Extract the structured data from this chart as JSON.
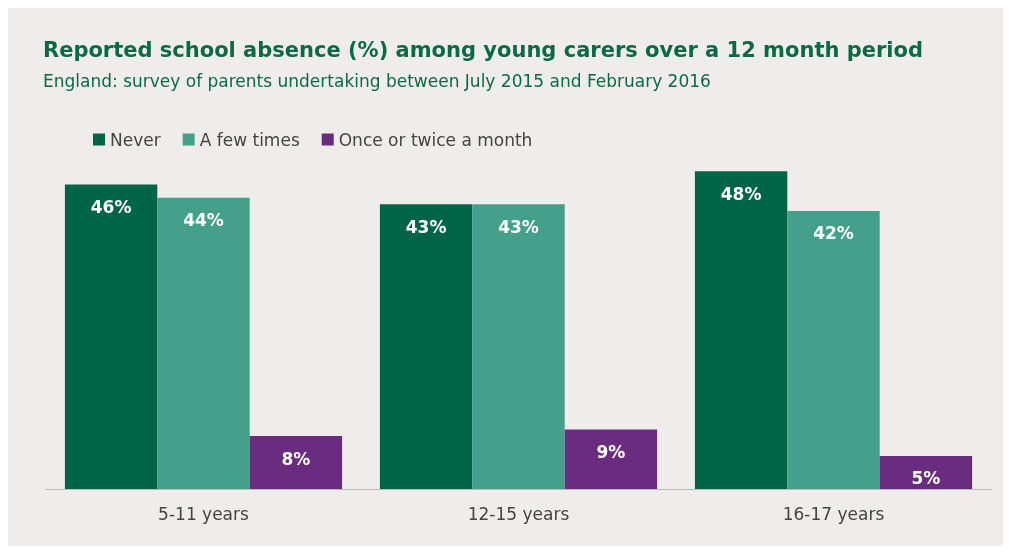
{
  "chart_data": {
    "type": "bar",
    "title": "Reported school absence (%) among young carers over a 12 month period",
    "subtitle": "England: survey of parents undertaking between July 2015 and February 2016",
    "categories": [
      "5-11 years",
      "12-15 years",
      "16-17 years"
    ],
    "series": [
      {
        "name": "Never",
        "color": "#006446",
        "values": [
          46,
          43,
          48
        ],
        "value_labels": [
          "46%",
          "43%",
          "48%"
        ]
      },
      {
        "name": "A few times",
        "color": "#44a08a",
        "values": [
          44,
          43,
          42
        ],
        "value_labels": [
          "44%",
          "43%",
          "42%"
        ]
      },
      {
        "name": "Once or twice a month",
        "color": "#6a2c7e",
        "values": [
          8,
          9,
          5
        ],
        "value_labels": [
          "8%",
          "9%",
          "5%"
        ]
      }
    ],
    "legend": "top left",
    "grid": false
  }
}
